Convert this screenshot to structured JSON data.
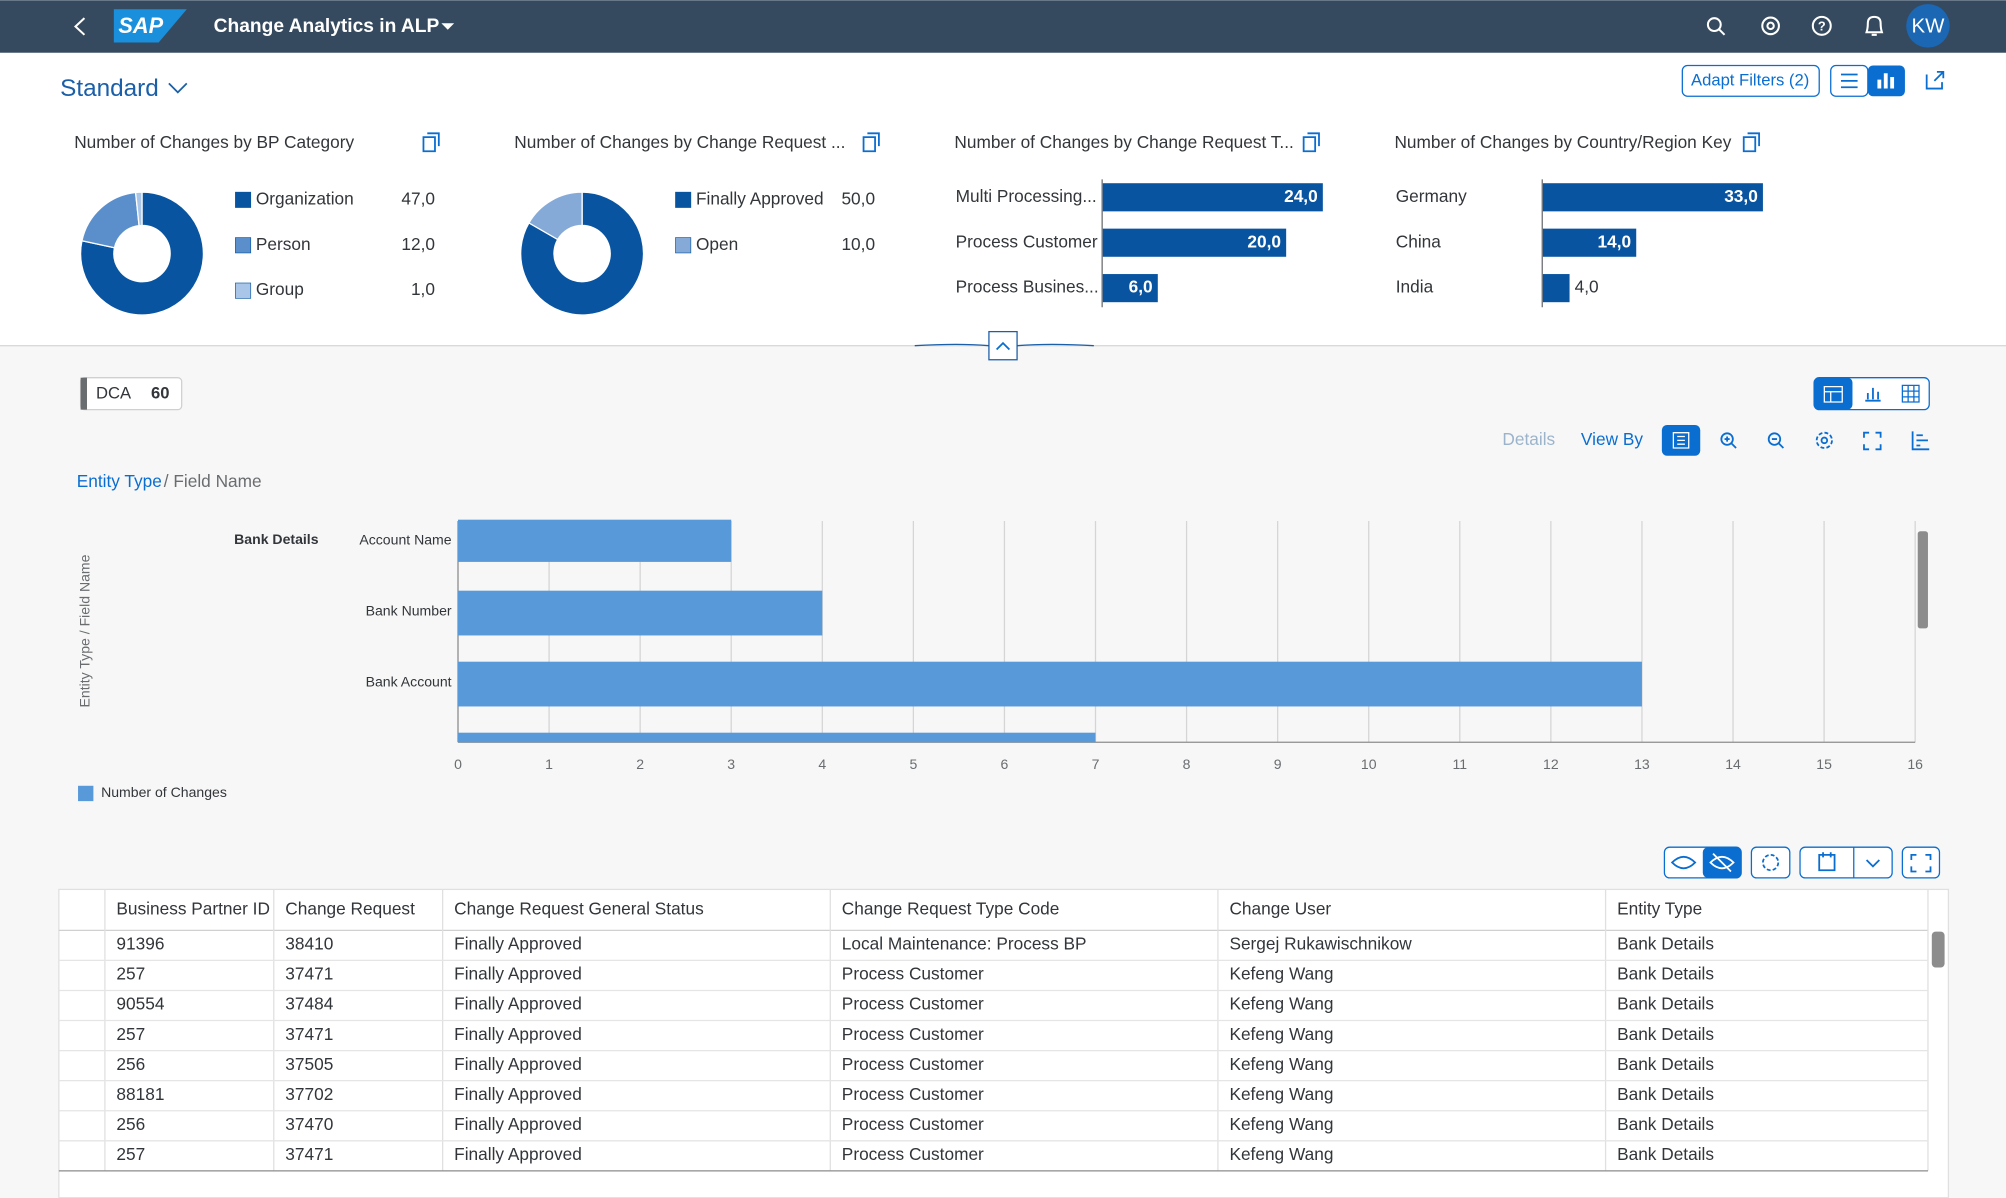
{
  "header": {
    "logo": "SAP",
    "app_title": "Change Analytics in ALP",
    "avatar": "KW"
  },
  "variant": "Standard",
  "adapt_filters": "Adapt Filters (2)",
  "filter_cards": [
    {
      "title": "Number of Changes by BP Category",
      "type": "donut",
      "categories": [
        "Organization",
        "Person",
        "Group"
      ],
      "values": [
        47,
        12,
        1
      ],
      "value_labels": [
        "47,0",
        "12,0",
        "1,0"
      ],
      "colors": [
        "#0854a0",
        "#5a8fcc",
        "#a9c6e8"
      ]
    },
    {
      "title": "Number of Changes by Change Request ...",
      "type": "donut",
      "categories": [
        "Finally Approved",
        "Open"
      ],
      "values": [
        50,
        10
      ],
      "value_labels": [
        "50,0",
        "10,0"
      ],
      "colors": [
        "#0854a0",
        "#86aad8"
      ]
    },
    {
      "title": "Number of Changes by Change Request T...",
      "type": "bar",
      "categories": [
        "Multi Processing...",
        "Process Customer",
        "Process Busines..."
      ],
      "values": [
        24,
        20,
        6
      ],
      "value_labels": [
        "24,0",
        "20,0",
        "6,0"
      ],
      "colors": [
        "#0854a0"
      ]
    },
    {
      "title": "Number of Changes by Country/Region Key",
      "type": "bar",
      "categories": [
        "Germany",
        "China",
        "India"
      ],
      "values": [
        33,
        14,
        4
      ],
      "value_labels": [
        "33,0",
        "14,0",
        "4,0"
      ],
      "colors": [
        "#0854a0"
      ]
    }
  ],
  "dca": {
    "label": "DCA",
    "count": 60
  },
  "chart_toolbar": {
    "details": "Details",
    "view_by": "View By"
  },
  "breadcrumb": {
    "link": "Entity Type",
    "rest": "/ Field Name"
  },
  "chart_data": {
    "type": "bar",
    "orientation": "horizontal",
    "y_label": "Entity Type / Field Name",
    "group": "Bank Details",
    "categories": [
      "Account Name",
      "Bank Number",
      "Bank Account",
      null
    ],
    "series": [
      {
        "name": "Number of Changes",
        "color": "#5899da",
        "values": [
          3,
          4,
          13,
          7
        ]
      }
    ],
    "xlim": [
      0,
      16
    ],
    "xticks": [
      0,
      1,
      2,
      3,
      4,
      5,
      6,
      7,
      8,
      9,
      10,
      11,
      12,
      13,
      14,
      15,
      16
    ],
    "grid": true,
    "legend": "bottom-left"
  },
  "table": {
    "columns": [
      "Business Partner ID",
      "Change Request",
      "Change Request General Status",
      "Change Request Type Code",
      "Change User",
      "Entity Type"
    ],
    "rows": [
      [
        "91396",
        "38410",
        "Finally Approved",
        "Local Maintenance: Process BP",
        "Sergej Rukawischnikow",
        "Bank Details"
      ],
      [
        "257",
        "37471",
        "Finally Approved",
        "Process Customer",
        "Kefeng Wang",
        "Bank Details"
      ],
      [
        "90554",
        "37484",
        "Finally Approved",
        "Process Customer",
        "Kefeng Wang",
        "Bank Details"
      ],
      [
        "257",
        "37471",
        "Finally Approved",
        "Process Customer",
        "Kefeng Wang",
        "Bank Details"
      ],
      [
        "256",
        "37505",
        "Finally Approved",
        "Process Customer",
        "Kefeng Wang",
        "Bank Details"
      ],
      [
        "88181",
        "37702",
        "Finally Approved",
        "Process Customer",
        "Kefeng Wang",
        "Bank Details"
      ],
      [
        "256",
        "37470",
        "Finally Approved",
        "Process Customer",
        "Kefeng Wang",
        "Bank Details"
      ],
      [
        "257",
        "37471",
        "Finally Approved",
        "Process Customer",
        "Kefeng Wang",
        "Bank Details"
      ]
    ]
  }
}
